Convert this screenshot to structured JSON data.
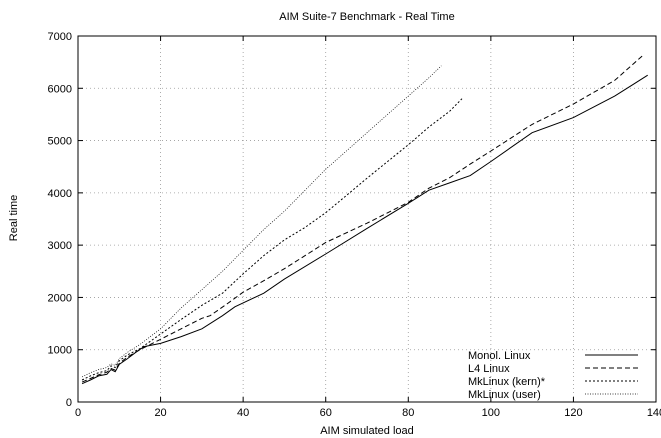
{
  "chart_data": {
    "type": "line",
    "title": "AIM Suite-7 Benchmark - Real Time",
    "xlabel": "AIM simulated load",
    "ylabel": "Real time",
    "xlim": [
      0,
      140
    ],
    "ylim": [
      0,
      7000
    ],
    "x_ticks": [
      0,
      20,
      40,
      60,
      80,
      100,
      120,
      140
    ],
    "y_ticks": [
      0,
      1000,
      2000,
      3000,
      4000,
      5000,
      6000,
      7000
    ],
    "grid": true,
    "legend_position": "bottom-right",
    "line_color": "#000000",
    "series": [
      {
        "name": "Monol. Linux",
        "style": "solid",
        "points": [
          [
            1,
            350
          ],
          [
            3,
            420
          ],
          [
            5,
            500
          ],
          [
            7,
            530
          ],
          [
            8,
            620
          ],
          [
            9,
            580
          ],
          [
            10,
            720
          ],
          [
            12,
            830
          ],
          [
            14,
            950
          ],
          [
            16,
            1060
          ],
          [
            20,
            1120
          ],
          [
            25,
            1250
          ],
          [
            30,
            1400
          ],
          [
            35,
            1650
          ],
          [
            38,
            1820
          ],
          [
            45,
            2080
          ],
          [
            50,
            2350
          ],
          [
            60,
            2830
          ],
          [
            70,
            3320
          ],
          [
            80,
            3800
          ],
          [
            85,
            4050
          ],
          [
            90,
            4190
          ],
          [
            95,
            4330
          ],
          [
            100,
            4600
          ],
          [
            110,
            5150
          ],
          [
            120,
            5440
          ],
          [
            130,
            5850
          ],
          [
            138,
            6250
          ]
        ]
      },
      {
        "name": "L4 Linux",
        "style": "dashed",
        "points": [
          [
            1,
            380
          ],
          [
            3,
            450
          ],
          [
            5,
            520
          ],
          [
            7,
            570
          ],
          [
            8,
            640
          ],
          [
            9,
            610
          ],
          [
            10,
            740
          ],
          [
            12,
            860
          ],
          [
            15,
            1000
          ],
          [
            20,
            1200
          ],
          [
            25,
            1400
          ],
          [
            30,
            1600
          ],
          [
            32,
            1650
          ],
          [
            36,
            1870
          ],
          [
            40,
            2100
          ],
          [
            45,
            2320
          ],
          [
            50,
            2550
          ],
          [
            55,
            2800
          ],
          [
            60,
            3050
          ],
          [
            70,
            3420
          ],
          [
            80,
            3820
          ],
          [
            85,
            4090
          ],
          [
            90,
            4290
          ],
          [
            95,
            4550
          ],
          [
            100,
            4800
          ],
          [
            110,
            5310
          ],
          [
            120,
            5700
          ],
          [
            130,
            6150
          ],
          [
            137,
            6640
          ]
        ]
      },
      {
        "name": "MkLinux (kern)*",
        "style": "dotted",
        "points": [
          [
            1,
            420
          ],
          [
            3,
            500
          ],
          [
            5,
            560
          ],
          [
            7,
            600
          ],
          [
            8,
            690
          ],
          [
            9,
            660
          ],
          [
            10,
            790
          ],
          [
            12,
            900
          ],
          [
            15,
            1020
          ],
          [
            20,
            1300
          ],
          [
            25,
            1580
          ],
          [
            30,
            1850
          ],
          [
            35,
            2080
          ],
          [
            40,
            2450
          ],
          [
            45,
            2800
          ],
          [
            50,
            3100
          ],
          [
            55,
            3340
          ],
          [
            60,
            3620
          ],
          [
            65,
            3950
          ],
          [
            70,
            4280
          ],
          [
            75,
            4600
          ],
          [
            80,
            4920
          ],
          [
            85,
            5260
          ],
          [
            90,
            5560
          ],
          [
            93,
            5800
          ]
        ]
      },
      {
        "name": "MkLinux (user)",
        "style": "fine-dotted",
        "points": [
          [
            1,
            480
          ],
          [
            3,
            560
          ],
          [
            5,
            620
          ],
          [
            7,
            660
          ],
          [
            8,
            730
          ],
          [
            9,
            700
          ],
          [
            10,
            830
          ],
          [
            12,
            950
          ],
          [
            15,
            1100
          ],
          [
            20,
            1400
          ],
          [
            25,
            1800
          ],
          [
            30,
            2150
          ],
          [
            35,
            2500
          ],
          [
            40,
            2900
          ],
          [
            45,
            3300
          ],
          [
            50,
            3650
          ],
          [
            55,
            4050
          ],
          [
            60,
            4450
          ],
          [
            65,
            4800
          ],
          [
            70,
            5150
          ],
          [
            75,
            5500
          ],
          [
            80,
            5850
          ],
          [
            85,
            6200
          ],
          [
            88,
            6430
          ]
        ]
      }
    ]
  }
}
